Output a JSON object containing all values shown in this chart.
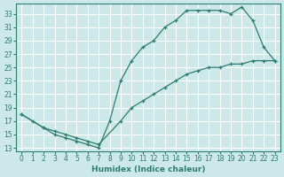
{
  "xlabel": "Humidex (Indice chaleur)",
  "bg_color": "#cce8e8",
  "grid_color": "#ffffff",
  "line_color": "#2d7d6e",
  "xlim": [
    -0.5,
    23.5
  ],
  "ylim": [
    12.5,
    34.5
  ],
  "xticks": [
    0,
    1,
    2,
    3,
    4,
    5,
    6,
    7,
    8,
    9,
    10,
    11,
    12,
    13,
    14,
    15,
    16,
    17,
    18,
    19,
    20,
    21,
    22,
    23
  ],
  "yticks": [
    13,
    15,
    17,
    19,
    21,
    23,
    25,
    27,
    29,
    31,
    33
  ],
  "line1_x": [
    0,
    1,
    2,
    3,
    4,
    5,
    6,
    7,
    8,
    9,
    10,
    11,
    12,
    13,
    14,
    15,
    16,
    17,
    18,
    19,
    20,
    21,
    22,
    23
  ],
  "line1_y": [
    18,
    17,
    16,
    15,
    14.5,
    14,
    13.5,
    13,
    17,
    23,
    26,
    28,
    29,
    31,
    32,
    33.5,
    33.5,
    33.5,
    33.5,
    33,
    34,
    32,
    28,
    26
  ],
  "line2_x": [
    0,
    2,
    3,
    4,
    5,
    6,
    7,
    9,
    10,
    11,
    12,
    13,
    14,
    15,
    16,
    17,
    18,
    19,
    20,
    21,
    22,
    23
  ],
  "line2_y": [
    18,
    16,
    15.5,
    15,
    14.5,
    14,
    13.5,
    17,
    19,
    20,
    21,
    22,
    23,
    24,
    24.5,
    25,
    25,
    25.5,
    25.5,
    26,
    26,
    26
  ]
}
